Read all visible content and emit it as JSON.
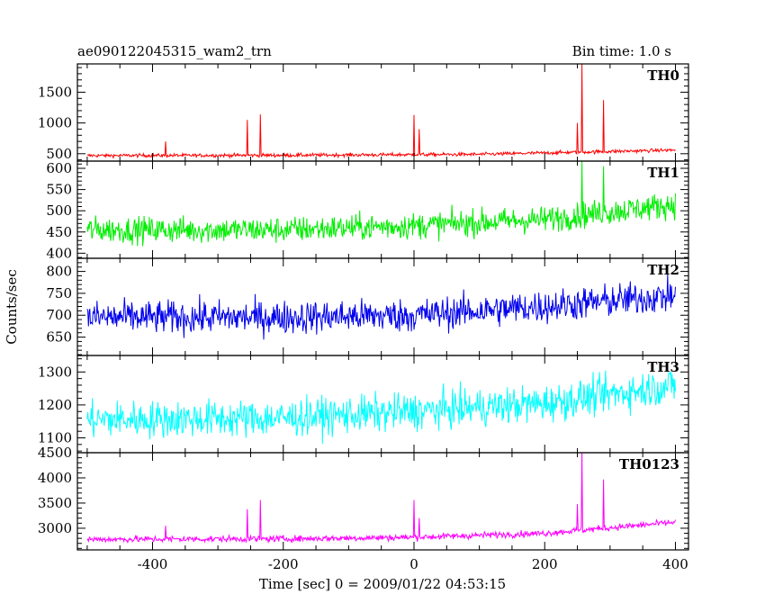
{
  "chart_data": {
    "type": "line",
    "title": "ae090122045315_wam2_trn",
    "subtitle": "Bin time: 1.0 s",
    "xlabel": "Time [sec] 0 = 2009/01/22 04:53:15",
    "ylabel": "Counts/sec",
    "xlim": [
      -515,
      420
    ],
    "xticks": [
      -400,
      -200,
      0,
      200,
      400
    ],
    "panels": [
      {
        "name": "TH0",
        "color": "#ff0000",
        "ylim": [
          380,
          1960
        ],
        "yticks": [
          500,
          1000,
          1500
        ],
        "baseline": [
          [
            -500,
            470
          ],
          [
            -200,
            475
          ],
          [
            100,
            490
          ],
          [
            400,
            560
          ]
        ],
        "noise": 20,
        "spikes": [
          [
            -380,
            700
          ],
          [
            -255,
            1050
          ],
          [
            -235,
            1140
          ],
          [
            0,
            1130
          ],
          [
            8,
            900
          ],
          [
            250,
            1000
          ],
          [
            257,
            1960
          ],
          [
            290,
            1370
          ]
        ]
      },
      {
        "name": "TH1",
        "color": "#00ee00",
        "ylim": [
          388,
          617
        ],
        "yticks": [
          400,
          450,
          500,
          550,
          600
        ],
        "baseline": [
          [
            -500,
            455
          ],
          [
            -200,
            455
          ],
          [
            0,
            465
          ],
          [
            200,
            480
          ],
          [
            400,
            515
          ]
        ],
        "noise": 22,
        "spikes": [
          [
            257,
            617
          ],
          [
            290,
            605
          ]
        ]
      },
      {
        "name": "TH2",
        "color": "#0000ee",
        "ylim": [
          608,
          830
        ],
        "yticks": [
          650,
          700,
          750,
          800
        ],
        "baseline": [
          [
            -500,
            695
          ],
          [
            -200,
            695
          ],
          [
            0,
            700
          ],
          [
            200,
            720
          ],
          [
            400,
            745
          ]
        ],
        "noise": 27,
        "spikes": []
      },
      {
        "name": "TH3",
        "color": "#00ffff",
        "ylim": [
          1055,
          1350
        ],
        "yticks": [
          1100,
          1200,
          1300
        ],
        "baseline": [
          [
            -500,
            1155
          ],
          [
            -200,
            1160
          ],
          [
            0,
            1180
          ],
          [
            200,
            1205
          ],
          [
            400,
            1260
          ]
        ],
        "noise": 40,
        "spikes": []
      },
      {
        "name": "TH0123",
        "color": "#ff00ff",
        "ylim": [
          2570,
          4500
        ],
        "yticks": [
          3000,
          3500,
          4000,
          4500
        ],
        "baseline": [
          [
            -500,
            2780
          ],
          [
            -200,
            2790
          ],
          [
            0,
            2820
          ],
          [
            200,
            2900
          ],
          [
            400,
            3120
          ]
        ],
        "noise": 45,
        "spikes": [
          [
            -380,
            3050
          ],
          [
            -255,
            3380
          ],
          [
            -235,
            3560
          ],
          [
            0,
            3560
          ],
          [
            8,
            3200
          ],
          [
            250,
            3480
          ],
          [
            257,
            4500
          ],
          [
            290,
            3970
          ]
        ]
      }
    ]
  }
}
